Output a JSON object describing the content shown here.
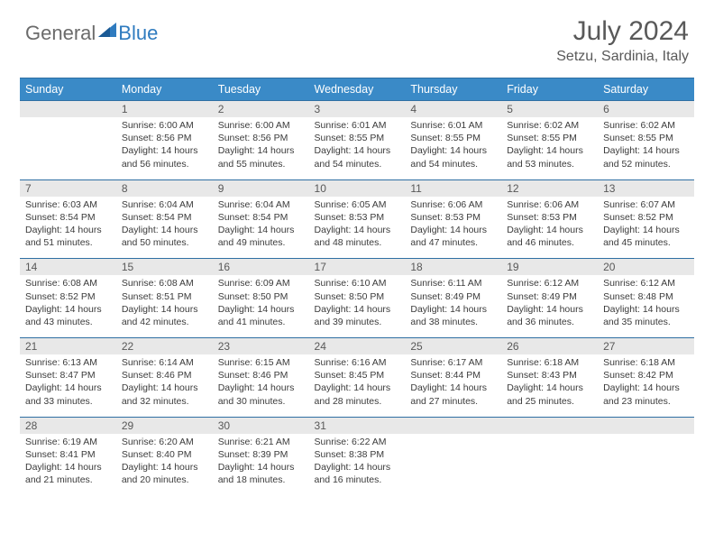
{
  "logo": {
    "part1": "General",
    "part2": "Blue"
  },
  "title": "July 2024",
  "location": "Setzu, Sardinia, Italy",
  "colors": {
    "header_bg": "#3a8ac7",
    "header_border": "#2f6fa3",
    "daynum_bg": "#e8e8e8",
    "text": "#3b3b3b",
    "title_text": "#595959"
  },
  "days_of_week": [
    "Sunday",
    "Monday",
    "Tuesday",
    "Wednesday",
    "Thursday",
    "Friday",
    "Saturday"
  ],
  "weeks": [
    [
      {
        "n": "",
        "sr": "",
        "ss": "",
        "dl": ""
      },
      {
        "n": "1",
        "sr": "Sunrise: 6:00 AM",
        "ss": "Sunset: 8:56 PM",
        "dl": "Daylight: 14 hours and 56 minutes."
      },
      {
        "n": "2",
        "sr": "Sunrise: 6:00 AM",
        "ss": "Sunset: 8:56 PM",
        "dl": "Daylight: 14 hours and 55 minutes."
      },
      {
        "n": "3",
        "sr": "Sunrise: 6:01 AM",
        "ss": "Sunset: 8:55 PM",
        "dl": "Daylight: 14 hours and 54 minutes."
      },
      {
        "n": "4",
        "sr": "Sunrise: 6:01 AM",
        "ss": "Sunset: 8:55 PM",
        "dl": "Daylight: 14 hours and 54 minutes."
      },
      {
        "n": "5",
        "sr": "Sunrise: 6:02 AM",
        "ss": "Sunset: 8:55 PM",
        "dl": "Daylight: 14 hours and 53 minutes."
      },
      {
        "n": "6",
        "sr": "Sunrise: 6:02 AM",
        "ss": "Sunset: 8:55 PM",
        "dl": "Daylight: 14 hours and 52 minutes."
      }
    ],
    [
      {
        "n": "7",
        "sr": "Sunrise: 6:03 AM",
        "ss": "Sunset: 8:54 PM",
        "dl": "Daylight: 14 hours and 51 minutes."
      },
      {
        "n": "8",
        "sr": "Sunrise: 6:04 AM",
        "ss": "Sunset: 8:54 PM",
        "dl": "Daylight: 14 hours and 50 minutes."
      },
      {
        "n": "9",
        "sr": "Sunrise: 6:04 AM",
        "ss": "Sunset: 8:54 PM",
        "dl": "Daylight: 14 hours and 49 minutes."
      },
      {
        "n": "10",
        "sr": "Sunrise: 6:05 AM",
        "ss": "Sunset: 8:53 PM",
        "dl": "Daylight: 14 hours and 48 minutes."
      },
      {
        "n": "11",
        "sr": "Sunrise: 6:06 AM",
        "ss": "Sunset: 8:53 PM",
        "dl": "Daylight: 14 hours and 47 minutes."
      },
      {
        "n": "12",
        "sr": "Sunrise: 6:06 AM",
        "ss": "Sunset: 8:53 PM",
        "dl": "Daylight: 14 hours and 46 minutes."
      },
      {
        "n": "13",
        "sr": "Sunrise: 6:07 AM",
        "ss": "Sunset: 8:52 PM",
        "dl": "Daylight: 14 hours and 45 minutes."
      }
    ],
    [
      {
        "n": "14",
        "sr": "Sunrise: 6:08 AM",
        "ss": "Sunset: 8:52 PM",
        "dl": "Daylight: 14 hours and 43 minutes."
      },
      {
        "n": "15",
        "sr": "Sunrise: 6:08 AM",
        "ss": "Sunset: 8:51 PM",
        "dl": "Daylight: 14 hours and 42 minutes."
      },
      {
        "n": "16",
        "sr": "Sunrise: 6:09 AM",
        "ss": "Sunset: 8:50 PM",
        "dl": "Daylight: 14 hours and 41 minutes."
      },
      {
        "n": "17",
        "sr": "Sunrise: 6:10 AM",
        "ss": "Sunset: 8:50 PM",
        "dl": "Daylight: 14 hours and 39 minutes."
      },
      {
        "n": "18",
        "sr": "Sunrise: 6:11 AM",
        "ss": "Sunset: 8:49 PM",
        "dl": "Daylight: 14 hours and 38 minutes."
      },
      {
        "n": "19",
        "sr": "Sunrise: 6:12 AM",
        "ss": "Sunset: 8:49 PM",
        "dl": "Daylight: 14 hours and 36 minutes."
      },
      {
        "n": "20",
        "sr": "Sunrise: 6:12 AM",
        "ss": "Sunset: 8:48 PM",
        "dl": "Daylight: 14 hours and 35 minutes."
      }
    ],
    [
      {
        "n": "21",
        "sr": "Sunrise: 6:13 AM",
        "ss": "Sunset: 8:47 PM",
        "dl": "Daylight: 14 hours and 33 minutes."
      },
      {
        "n": "22",
        "sr": "Sunrise: 6:14 AM",
        "ss": "Sunset: 8:46 PM",
        "dl": "Daylight: 14 hours and 32 minutes."
      },
      {
        "n": "23",
        "sr": "Sunrise: 6:15 AM",
        "ss": "Sunset: 8:46 PM",
        "dl": "Daylight: 14 hours and 30 minutes."
      },
      {
        "n": "24",
        "sr": "Sunrise: 6:16 AM",
        "ss": "Sunset: 8:45 PM",
        "dl": "Daylight: 14 hours and 28 minutes."
      },
      {
        "n": "25",
        "sr": "Sunrise: 6:17 AM",
        "ss": "Sunset: 8:44 PM",
        "dl": "Daylight: 14 hours and 27 minutes."
      },
      {
        "n": "26",
        "sr": "Sunrise: 6:18 AM",
        "ss": "Sunset: 8:43 PM",
        "dl": "Daylight: 14 hours and 25 minutes."
      },
      {
        "n": "27",
        "sr": "Sunrise: 6:18 AM",
        "ss": "Sunset: 8:42 PM",
        "dl": "Daylight: 14 hours and 23 minutes."
      }
    ],
    [
      {
        "n": "28",
        "sr": "Sunrise: 6:19 AM",
        "ss": "Sunset: 8:41 PM",
        "dl": "Daylight: 14 hours and 21 minutes."
      },
      {
        "n": "29",
        "sr": "Sunrise: 6:20 AM",
        "ss": "Sunset: 8:40 PM",
        "dl": "Daylight: 14 hours and 20 minutes."
      },
      {
        "n": "30",
        "sr": "Sunrise: 6:21 AM",
        "ss": "Sunset: 8:39 PM",
        "dl": "Daylight: 14 hours and 18 minutes."
      },
      {
        "n": "31",
        "sr": "Sunrise: 6:22 AM",
        "ss": "Sunset: 8:38 PM",
        "dl": "Daylight: 14 hours and 16 minutes."
      },
      {
        "n": "",
        "sr": "",
        "ss": "",
        "dl": ""
      },
      {
        "n": "",
        "sr": "",
        "ss": "",
        "dl": ""
      },
      {
        "n": "",
        "sr": "",
        "ss": "",
        "dl": ""
      }
    ]
  ]
}
